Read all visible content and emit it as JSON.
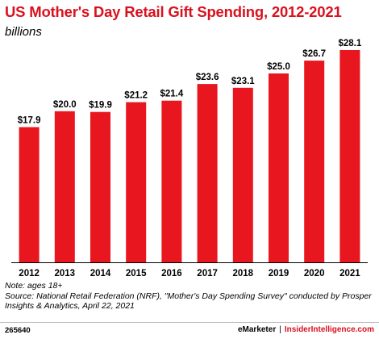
{
  "header": {
    "title": "US Mother's Day Retail Gift Spending, 2012-2021",
    "subtitle": "billions"
  },
  "chart_data": {
    "type": "bar",
    "title": "US Mother's Day Retail Gift Spending, 2012-2021",
    "subtitle": "billions",
    "categories": [
      "2012",
      "2013",
      "2014",
      "2015",
      "2016",
      "2017",
      "2018",
      "2019",
      "2020",
      "2021"
    ],
    "values": [
      17.9,
      20.0,
      19.9,
      21.2,
      21.4,
      23.6,
      23.1,
      25.0,
      26.7,
      28.1
    ],
    "value_labels": [
      "$17.9",
      "$20.0",
      "$19.9",
      "$21.2",
      "$21.4",
      "$23.6",
      "$23.1",
      "$25.0",
      "$26.7",
      "$28.1"
    ],
    "bar_color": "#e8161e",
    "grid": false,
    "legend": "none"
  },
  "notes": {
    "note": "Note: ages 18+",
    "source": "Source: National Retail Federation (NRF), \"Mother's Day Spending Survey\" conducted by Prosper Insights & Analytics, April 22, 2021"
  },
  "footer": {
    "chart_id": "265640",
    "brand_primary": "eMarketer",
    "brand_separator": "|",
    "brand_secondary": "InsiderIntelligence.com"
  },
  "colors": {
    "title": "#d9121f",
    "bar": "#e8161e",
    "brand_accent": "#d9121f"
  }
}
